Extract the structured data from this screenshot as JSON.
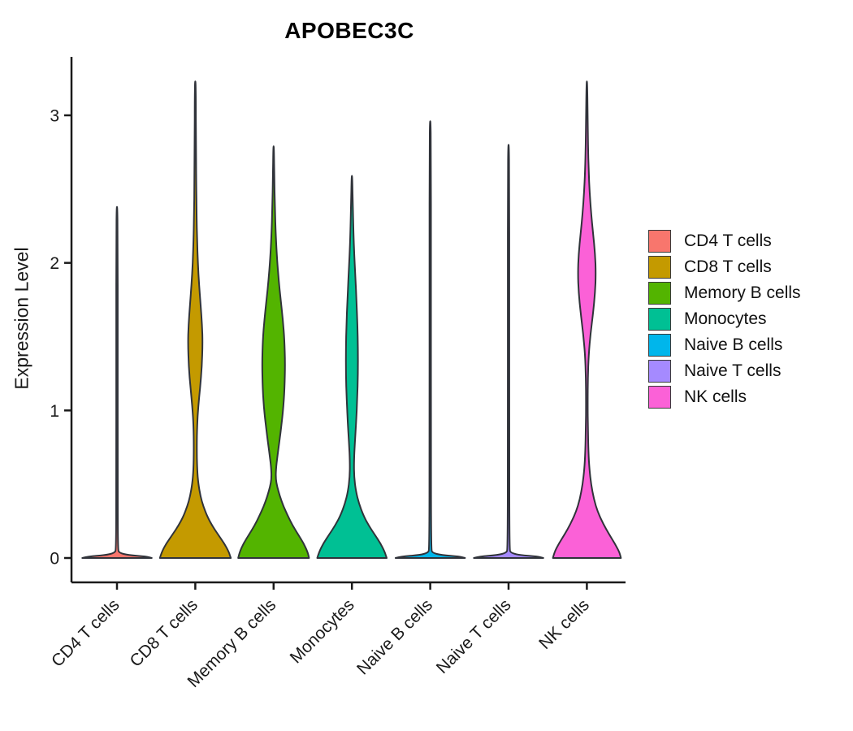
{
  "chart_data": {
    "type": "violin",
    "title": "APOBEC3C",
    "xlabel": "",
    "ylabel": "Expression Level",
    "ylim": [
      0,
      3.3
    ],
    "y_ticks": [
      0,
      1,
      2,
      3
    ],
    "x_tick_angle": 45,
    "grid": false,
    "categories": [
      "CD4 T cells",
      "CD8 T cells",
      "Memory B cells",
      "Monocytes",
      "Naive B cells",
      "Naive T cells",
      "NK cells"
    ],
    "legend": {
      "position": "right",
      "entries": [
        {
          "label": "CD4 T cells",
          "color": "#F8766D"
        },
        {
          "label": "CD8 T cells",
          "color": "#C49A00"
        },
        {
          "label": "Memory B cells",
          "color": "#53B400"
        },
        {
          "label": "Monocytes",
          "color": "#00C094"
        },
        {
          "label": "Naive B cells",
          "color": "#00B6EB"
        },
        {
          "label": "Naive T cells",
          "color": "#A58AFF"
        },
        {
          "label": "NK cells",
          "color": "#FB61D7"
        }
      ]
    },
    "series": [
      {
        "name": "CD4 T cells",
        "color": "#F8766D",
        "max_expression": 2.38,
        "profile": [
          [
            0,
            0.95
          ],
          [
            0.01,
            0.8
          ],
          [
            0.02,
            0.3
          ],
          [
            0.035,
            0.06
          ],
          [
            0.06,
            0.025
          ],
          [
            0.5,
            0.02
          ],
          [
            1.5,
            0.02
          ],
          [
            2.2,
            0.018
          ],
          [
            2.38,
            0.008
          ]
        ]
      },
      {
        "name": "CD8 T cells",
        "color": "#C49A00",
        "max_expression": 3.23,
        "profile": [
          [
            0,
            0.97
          ],
          [
            0.04,
            0.92
          ],
          [
            0.1,
            0.79
          ],
          [
            0.16,
            0.62
          ],
          [
            0.22,
            0.46
          ],
          [
            0.28,
            0.33
          ],
          [
            0.35,
            0.22
          ],
          [
            0.42,
            0.14
          ],
          [
            0.5,
            0.085
          ],
          [
            0.6,
            0.05
          ],
          [
            0.75,
            0.04
          ],
          [
            0.9,
            0.05
          ],
          [
            1.02,
            0.08
          ],
          [
            1.15,
            0.13
          ],
          [
            1.3,
            0.18
          ],
          [
            1.45,
            0.2
          ],
          [
            1.58,
            0.185
          ],
          [
            1.72,
            0.145
          ],
          [
            1.85,
            0.105
          ],
          [
            2.0,
            0.07
          ],
          [
            2.15,
            0.05
          ],
          [
            2.32,
            0.035
          ],
          [
            2.55,
            0.025
          ],
          [
            2.85,
            0.018
          ],
          [
            3.1,
            0.015
          ],
          [
            3.23,
            0.008
          ]
        ]
      },
      {
        "name": "Memory B cells",
        "color": "#53B400",
        "max_expression": 2.79,
        "profile": [
          [
            0,
            0.97
          ],
          [
            0.04,
            0.93
          ],
          [
            0.1,
            0.82
          ],
          [
            0.16,
            0.67
          ],
          [
            0.22,
            0.52
          ],
          [
            0.28,
            0.4
          ],
          [
            0.35,
            0.27
          ],
          [
            0.42,
            0.17
          ],
          [
            0.48,
            0.1
          ],
          [
            0.54,
            0.055
          ],
          [
            0.62,
            0.07
          ],
          [
            0.72,
            0.12
          ],
          [
            0.85,
            0.19
          ],
          [
            1.0,
            0.26
          ],
          [
            1.15,
            0.3
          ],
          [
            1.32,
            0.315
          ],
          [
            1.48,
            0.295
          ],
          [
            1.62,
            0.25
          ],
          [
            1.75,
            0.195
          ],
          [
            1.88,
            0.14
          ],
          [
            2.02,
            0.095
          ],
          [
            2.18,
            0.06
          ],
          [
            2.38,
            0.035
          ],
          [
            2.58,
            0.02
          ],
          [
            2.79,
            0.008
          ]
        ]
      },
      {
        "name": "Monocytes",
        "color": "#00C094",
        "max_expression": 2.59,
        "profile": [
          [
            0,
            0.95
          ],
          [
            0.04,
            0.9
          ],
          [
            0.1,
            0.78
          ],
          [
            0.16,
            0.62
          ],
          [
            0.22,
            0.46
          ],
          [
            0.29,
            0.31
          ],
          [
            0.37,
            0.19
          ],
          [
            0.45,
            0.11
          ],
          [
            0.55,
            0.06
          ],
          [
            0.65,
            0.055
          ],
          [
            0.78,
            0.08
          ],
          [
            0.92,
            0.115
          ],
          [
            1.08,
            0.145
          ],
          [
            1.25,
            0.165
          ],
          [
            1.42,
            0.165
          ],
          [
            1.58,
            0.15
          ],
          [
            1.74,
            0.125
          ],
          [
            1.9,
            0.095
          ],
          [
            2.05,
            0.065
          ],
          [
            2.2,
            0.042
          ],
          [
            2.4,
            0.025
          ],
          [
            2.59,
            0.008
          ]
        ]
      },
      {
        "name": "Naive B cells",
        "color": "#00B6EB",
        "max_expression": 2.96,
        "profile": [
          [
            0,
            0.95
          ],
          [
            0.01,
            0.8
          ],
          [
            0.02,
            0.3
          ],
          [
            0.035,
            0.06
          ],
          [
            0.06,
            0.025
          ],
          [
            0.8,
            0.02
          ],
          [
            2.0,
            0.02
          ],
          [
            2.8,
            0.018
          ],
          [
            2.96,
            0.008
          ]
        ]
      },
      {
        "name": "Naive T cells",
        "color": "#A58AFF",
        "max_expression": 2.8,
        "profile": [
          [
            0,
            0.95
          ],
          [
            0.01,
            0.8
          ],
          [
            0.02,
            0.3
          ],
          [
            0.035,
            0.06
          ],
          [
            0.06,
            0.025
          ],
          [
            0.8,
            0.02
          ],
          [
            1.8,
            0.02
          ],
          [
            2.6,
            0.018
          ],
          [
            2.8,
            0.008
          ]
        ]
      },
      {
        "name": "NK cells",
        "color": "#FB61D7",
        "max_expression": 3.23,
        "profile": [
          [
            0,
            0.93
          ],
          [
            0.04,
            0.89
          ],
          [
            0.1,
            0.76
          ],
          [
            0.16,
            0.61
          ],
          [
            0.23,
            0.45
          ],
          [
            0.31,
            0.3
          ],
          [
            0.4,
            0.19
          ],
          [
            0.5,
            0.115
          ],
          [
            0.6,
            0.07
          ],
          [
            0.72,
            0.042
          ],
          [
            0.88,
            0.028
          ],
          [
            1.05,
            0.022
          ],
          [
            1.22,
            0.026
          ],
          [
            1.38,
            0.05
          ],
          [
            1.52,
            0.1
          ],
          [
            1.66,
            0.17
          ],
          [
            1.8,
            0.225
          ],
          [
            1.93,
            0.245
          ],
          [
            2.06,
            0.225
          ],
          [
            2.2,
            0.17
          ],
          [
            2.34,
            0.115
          ],
          [
            2.48,
            0.075
          ],
          [
            2.62,
            0.05
          ],
          [
            2.8,
            0.032
          ],
          [
            3.0,
            0.022
          ],
          [
            3.23,
            0.008
          ]
        ]
      }
    ],
    "style": {
      "violin_stroke": "#30333a",
      "axis_color": "#1a1a1a",
      "text_color": "#1a1a1a"
    }
  }
}
